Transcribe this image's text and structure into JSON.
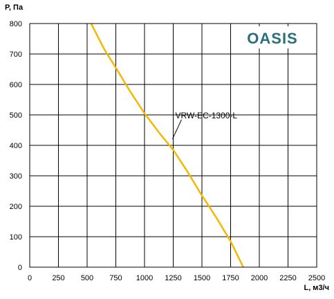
{
  "brand": {
    "name": "OASIS",
    "color": "#2b6f7a"
  },
  "colors": {
    "curve": "#f5b800",
    "grid": "#000000"
  },
  "chart_data": {
    "type": "line",
    "title": "",
    "xlabel": "L, м3/ч",
    "ylabel": "P, Па",
    "xlim": [
      0,
      2500
    ],
    "ylim": [
      0,
      800
    ],
    "xticks": [
      0,
      250,
      500,
      750,
      1000,
      1250,
      1500,
      1750,
      2000,
      2250,
      2500
    ],
    "yticks": [
      0,
      100,
      200,
      300,
      400,
      500,
      600,
      700,
      800
    ],
    "grid": true,
    "series": [
      {
        "name": "VRW-EC-1300-L",
        "x": [
          535,
          650,
          750,
          870,
          1000,
          1130,
          1250,
          1380,
          1500,
          1630,
          1750,
          1860
        ],
        "y": [
          800,
          715,
          655,
          580,
          505,
          440,
          385,
          310,
          235,
          160,
          85,
          0
        ]
      }
    ],
    "annotations": [
      {
        "text": "VRW-EC-1300-L",
        "x": 1250,
        "y": 430
      }
    ]
  }
}
